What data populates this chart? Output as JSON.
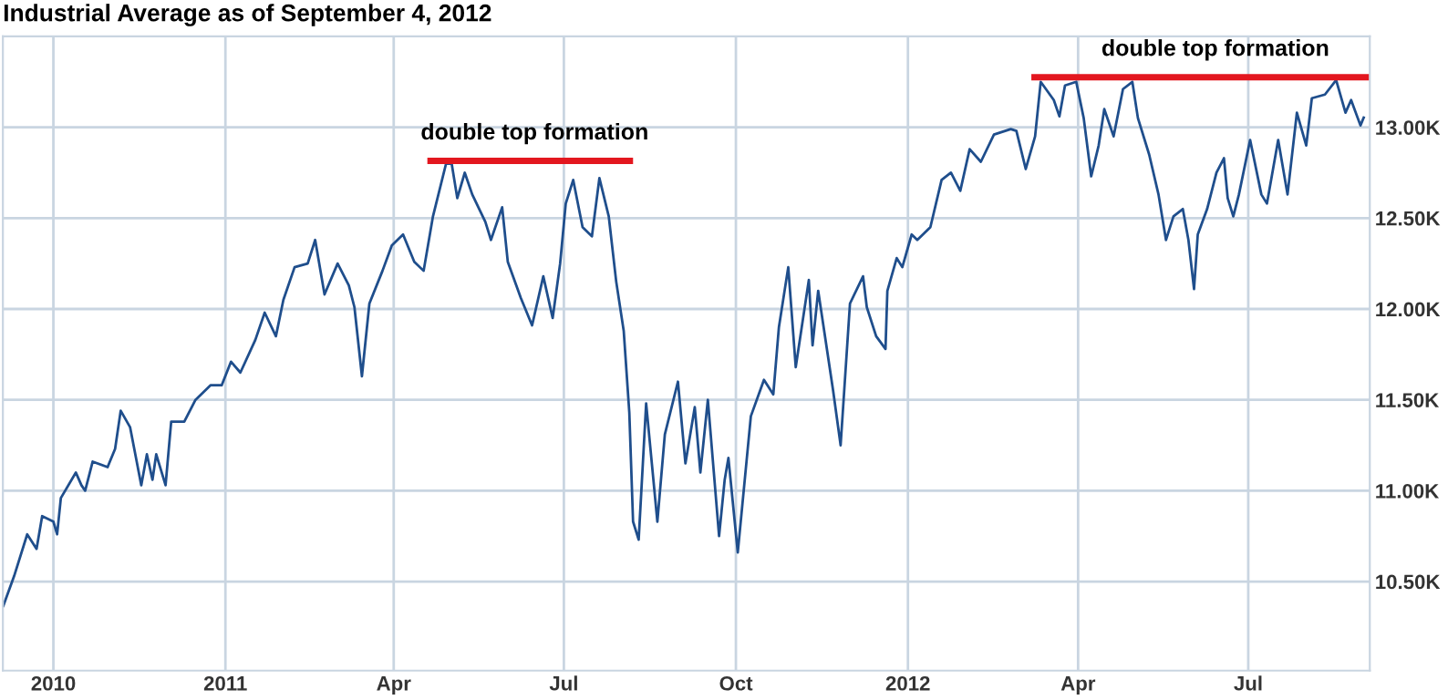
{
  "chart_data": {
    "type": "line",
    "title": "Industrial Average as of September 4, 2012",
    "x": [
      "2010-09-04",
      "2010-09-10",
      "2010-09-17",
      "2010-09-22",
      "2010-09-25",
      "2010-10-01",
      "2010-10-03",
      "2010-10-05",
      "2010-10-13",
      "2010-10-16",
      "2010-10-18",
      "2010-10-22",
      "2010-10-30",
      "2010-11-03",
      "2010-11-06",
      "2010-11-11",
      "2010-11-17",
      "2010-11-20",
      "2010-11-23",
      "2010-11-25",
      "2010-11-30",
      "2010-12-03",
      "2010-12-10",
      "2010-12-16",
      "2010-12-24",
      "2010-12-30",
      "2011-01-04",
      "2011-01-09",
      "2011-01-17",
      "2011-01-22",
      "2011-01-28",
      "2011-02-01",
      "2011-02-07",
      "2011-02-14",
      "2011-02-18",
      "2011-02-23",
      "2011-03-02",
      "2011-03-08",
      "2011-03-11",
      "2011-03-15",
      "2011-03-19",
      "2011-03-26",
      "2011-03-31",
      "2011-04-06",
      "2011-04-12",
      "2011-04-17",
      "2011-04-22",
      "2011-04-29",
      "2011-05-02",
      "2011-05-05",
      "2011-05-09",
      "2011-05-13",
      "2011-05-20",
      "2011-05-23",
      "2011-05-29",
      "2011-06-01",
      "2011-06-08",
      "2011-06-14",
      "2011-06-20",
      "2011-06-25",
      "2011-06-29",
      "2011-07-02",
      "2011-07-06",
      "2011-07-11",
      "2011-07-16",
      "2011-07-20",
      "2011-07-25",
      "2011-07-29",
      "2011-08-02",
      "2011-08-05",
      "2011-08-07",
      "2011-08-10",
      "2011-08-14",
      "2011-08-20",
      "2011-08-24",
      "2011-08-31",
      "2011-09-04",
      "2011-09-09",
      "2011-09-12",
      "2011-09-16",
      "2011-09-22",
      "2011-09-25",
      "2011-09-27",
      "2011-10-02",
      "2011-10-09",
      "2011-10-16",
      "2011-10-21",
      "2011-10-24",
      "2011-10-29",
      "2011-11-02",
      "2011-11-09",
      "2011-11-11",
      "2011-11-14",
      "2011-11-22",
      "2011-11-26",
      "2011-12-01",
      "2011-12-08",
      "2011-12-10",
      "2011-12-15",
      "2011-12-20",
      "2011-12-21",
      "2011-12-26",
      "2011-12-29",
      "2012-01-03",
      "2012-01-06",
      "2012-01-13",
      "2012-01-19",
      "2012-01-24",
      "2012-01-29",
      "2012-02-03",
      "2012-02-09",
      "2012-02-16",
      "2012-02-25",
      "2012-02-28",
      "2012-03-04",
      "2012-03-09",
      "2012-03-12",
      "2012-03-19",
      "2012-03-22",
      "2012-03-25",
      "2012-03-31",
      "2012-04-04",
      "2012-04-08",
      "2012-04-12",
      "2012-04-15",
      "2012-04-20",
      "2012-04-25",
      "2012-04-30",
      "2012-05-03",
      "2012-05-09",
      "2012-05-14",
      "2012-05-18",
      "2012-05-22",
      "2012-05-27",
      "2012-05-30",
      "2012-06-02",
      "2012-06-04",
      "2012-06-09",
      "2012-06-14",
      "2012-06-18",
      "2012-06-20",
      "2012-06-23",
      "2012-06-26",
      "2012-07-02",
      "2012-07-08",
      "2012-07-11",
      "2012-07-17",
      "2012-07-22",
      "2012-07-27",
      "2012-08-01",
      "2012-08-04",
      "2012-08-11",
      "2012-08-17",
      "2012-08-22",
      "2012-08-25",
      "2012-08-30",
      "2012-09-01"
    ],
    "series": [
      {
        "color": "#1f4e8c",
        "values": [
          10360,
          10530,
          10760,
          10680,
          10860,
          10830,
          10760,
          10960,
          11100,
          11030,
          11000,
          11160,
          11130,
          11230,
          11440,
          11350,
          11030,
          11200,
          11060,
          11200,
          11030,
          11380,
          11380,
          11500,
          11580,
          11580,
          11710,
          11650,
          11830,
          11980,
          11850,
          12050,
          12230,
          12250,
          12380,
          12080,
          12250,
          12130,
          12010,
          11630,
          12030,
          12210,
          12350,
          12410,
          12260,
          12210,
          12510,
          12800,
          12800,
          12610,
          12750,
          12630,
          12480,
          12380,
          12560,
          12260,
          12060,
          11910,
          12180,
          11950,
          12250,
          12580,
          12710,
          12450,
          12400,
          12720,
          12510,
          12150,
          11880,
          11430,
          10830,
          10730,
          11480,
          10830,
          11310,
          11600,
          11150,
          11460,
          11100,
          11500,
          10750,
          11060,
          11180,
          10660,
          11410,
          11610,
          11530,
          11900,
          12230,
          11680,
          12160,
          11800,
          12100,
          11550,
          11250,
          12030,
          12180,
          12010,
          11850,
          11780,
          12100,
          12280,
          12230,
          12410,
          12380,
          12450,
          12710,
          12750,
          12650,
          12880,
          12810,
          12960,
          12990,
          12980,
          12770,
          12950,
          13250,
          13150,
          13060,
          13230,
          13250,
          13050,
          12730,
          12900,
          13100,
          12950,
          13210,
          13250,
          13050,
          12850,
          12630,
          12380,
          12510,
          12550,
          12380,
          12110,
          12410,
          12550,
          12750,
          12830,
          12610,
          12510,
          12630,
          12930,
          12630,
          12580,
          12930,
          12630,
          13080,
          12900,
          13160,
          13180,
          13260,
          13080,
          13150,
          13010,
          13060
        ]
      },
      {
        "type": "line",
        "color": "#e3171f",
        "x": [
          "2011-04-19",
          "2011-08-07"
        ],
        "values": [
          12815,
          12815
        ]
      },
      {
        "type": "line",
        "color": "#e3171f",
        "x": [
          "2012-03-07",
          "2012-09-04"
        ],
        "values": [
          13275,
          13275
        ]
      }
    ],
    "xlim": [
      "2010-09-04",
      "2012-09-04"
    ],
    "xticks": [
      {
        "value": "2010-10-01",
        "label": "2010"
      },
      {
        "value": "2011-01-01",
        "label": "2011"
      },
      {
        "value": "2011-04-01",
        "label": "Apr"
      },
      {
        "value": "2011-07-01",
        "label": "Jul"
      },
      {
        "value": "2011-10-01",
        "label": "Oct"
      },
      {
        "value": "2012-01-01",
        "label": "2012"
      },
      {
        "value": "2012-04-01",
        "label": "Apr"
      },
      {
        "value": "2012-07-01",
        "label": "Jul"
      }
    ],
    "ylim": [
      10010,
      13500
    ],
    "yticks": [
      {
        "value": 10500,
        "label": "10.50K"
      },
      {
        "value": 11000,
        "label": "11.00K"
      },
      {
        "value": 11500,
        "label": "11.50K"
      },
      {
        "value": 12000,
        "label": "12.00K"
      },
      {
        "value": 12500,
        "label": "12.50K"
      },
      {
        "value": 13000,
        "label": "13.00K"
      }
    ],
    "grid": true,
    "annotations": [
      "double top formation",
      "double top formation"
    ]
  }
}
